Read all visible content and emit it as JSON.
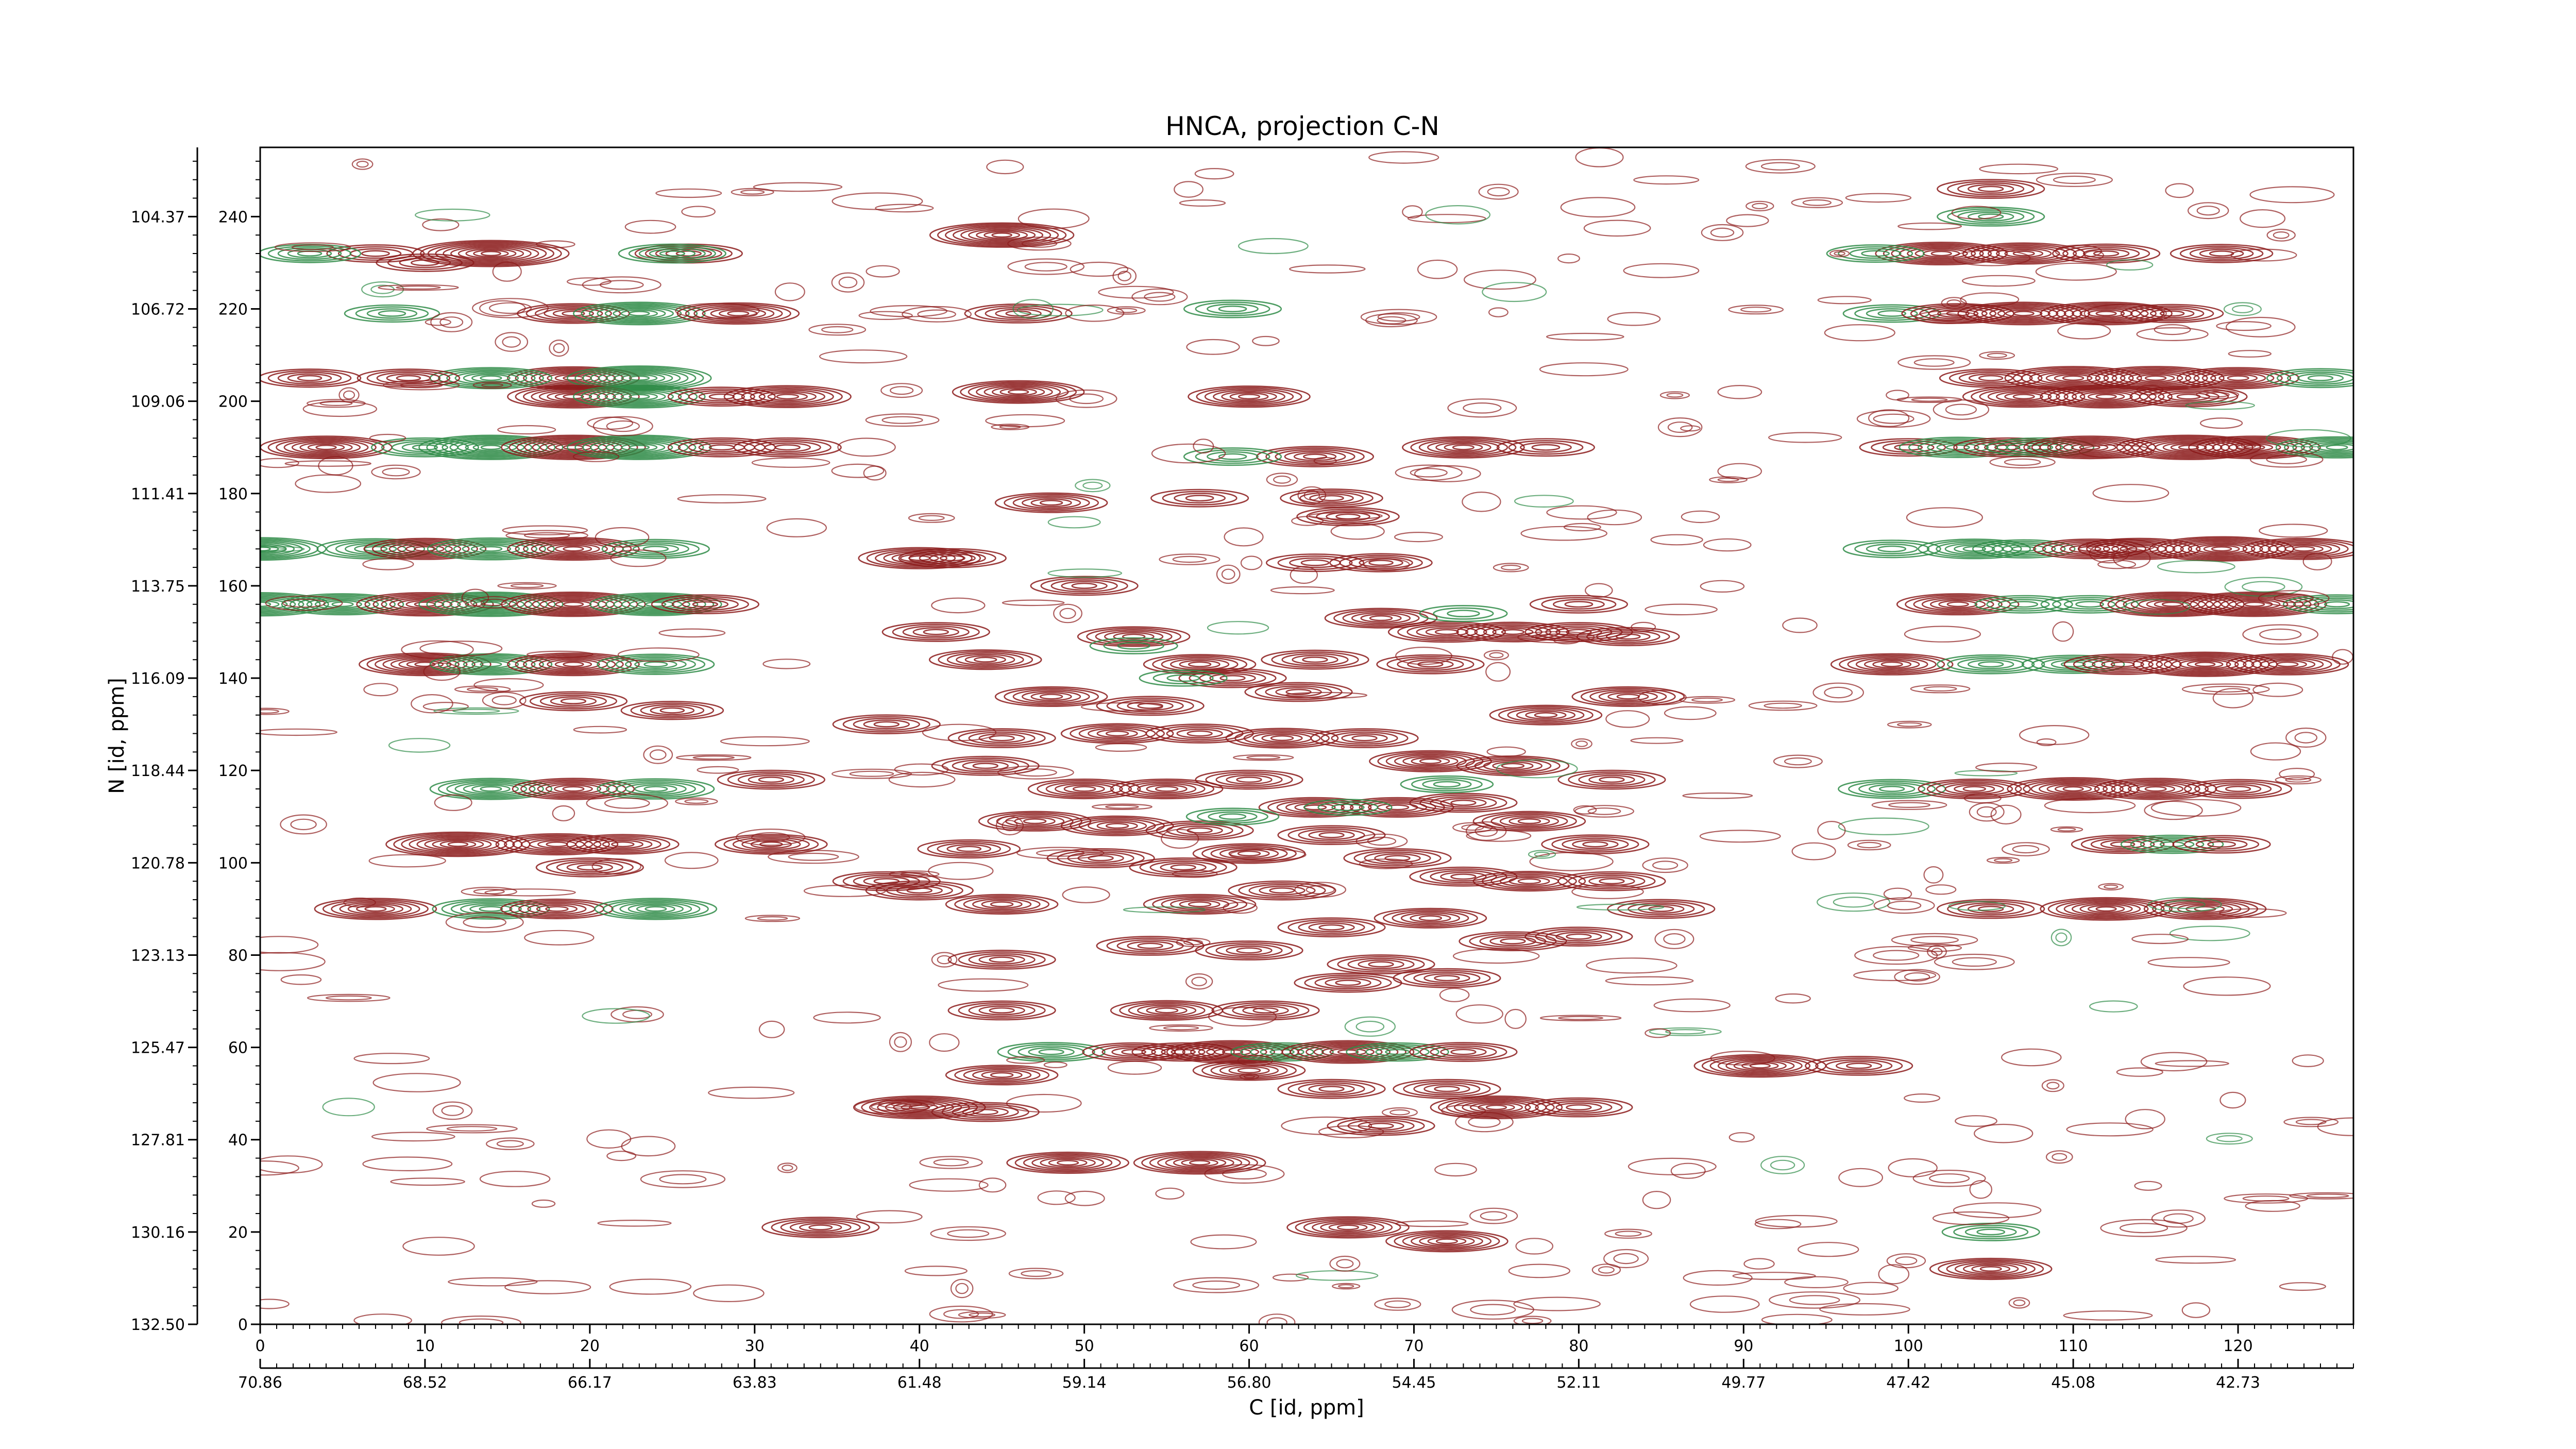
{
  "chart_data": {
    "type": "contour",
    "title": "HNCA, projection C-N",
    "xlabel": "C [id, ppm]",
    "ylabel": "N [id, ppm]",
    "x_index_range": [
      0,
      127
    ],
    "y_index_range": [
      0,
      255
    ],
    "x_index_ticks": [
      "0",
      "10",
      "20",
      "30",
      "40",
      "50",
      "60",
      "70",
      "80",
      "90",
      "100",
      "110",
      "120"
    ],
    "y_index_ticks": [
      "0",
      "20",
      "40",
      "60",
      "80",
      "100",
      "120",
      "140",
      "160",
      "180",
      "200",
      "220",
      "240"
    ],
    "x_ppm_ticks": [
      "70.86",
      "68.52",
      "66.17",
      "63.83",
      "61.48",
      "59.14",
      "56.80",
      "54.45",
      "52.11",
      "49.77",
      "47.42",
      "45.08",
      "42.73"
    ],
    "y_ppm_ticks": [
      "132.50",
      "130.16",
      "127.81",
      "125.47",
      "123.13",
      "120.78",
      "118.44",
      "116.09",
      "113.75",
      "111.41",
      "109.06",
      "106.72",
      "104.37"
    ],
    "colors": {
      "positive": "#8b1a1a",
      "negative": "#2e8b47"
    },
    "peaks": [
      [
        14,
        232,
        1,
        4.0
      ],
      [
        26,
        232,
        1,
        2.0
      ],
      [
        45,
        236,
        1,
        3.5
      ],
      [
        25,
        232,
        -1,
        2.0
      ],
      [
        7,
        232,
        1,
        1.6
      ],
      [
        10,
        230,
        1,
        1.6
      ],
      [
        3,
        232,
        -1,
        1.8
      ],
      [
        19,
        219,
        1,
        2.2
      ],
      [
        23,
        219,
        -1,
        3.0
      ],
      [
        29,
        219,
        1,
        2.6
      ],
      [
        46,
        219,
        1,
        2.0
      ],
      [
        8,
        219,
        -1,
        1.5
      ],
      [
        59,
        220,
        -1,
        1.6
      ],
      [
        19,
        205,
        1,
        3.0
      ],
      [
        14,
        205,
        -1,
        2.6
      ],
      [
        23,
        205,
        -1,
        3.5
      ],
      [
        9,
        205,
        1,
        1.8
      ],
      [
        3,
        205,
        1,
        1.8
      ],
      [
        19,
        201,
        1,
        3.0
      ],
      [
        23,
        201,
        -1,
        3.0
      ],
      [
        28,
        201,
        1,
        2.0
      ],
      [
        32,
        201,
        1,
        2.8
      ],
      [
        46,
        202,
        1,
        3.0
      ],
      [
        60,
        201,
        1,
        2.6
      ],
      [
        14,
        190,
        -1,
        3.5
      ],
      [
        19,
        190,
        1,
        3.5
      ],
      [
        23,
        190,
        -1,
        3.5
      ],
      [
        4,
        190,
        1,
        3.0
      ],
      [
        10,
        190,
        -1,
        2.0
      ],
      [
        28,
        190,
        1,
        2.0
      ],
      [
        32,
        190,
        1,
        2.0
      ],
      [
        73,
        190,
        1,
        2.6
      ],
      [
        78,
        190,
        1,
        1.6
      ],
      [
        64,
        188,
        1,
        2.4
      ],
      [
        59,
        188,
        -1,
        1.6
      ],
      [
        65,
        179,
        1,
        1.8
      ],
      [
        57,
        179,
        1,
        1.6
      ],
      [
        48,
        178,
        1,
        2.2
      ],
      [
        66,
        175,
        1,
        1.8
      ],
      [
        0,
        168,
        -1,
        3.0
      ],
      [
        7,
        168,
        -1,
        2.4
      ],
      [
        10,
        168,
        1,
        2.6
      ],
      [
        14,
        168,
        -1,
        2.8
      ],
      [
        19,
        168,
        1,
        3.0
      ],
      [
        24,
        168,
        -1,
        2.0
      ],
      [
        40,
        166,
        1,
        2.6
      ],
      [
        0,
        156,
        -1,
        3.2
      ],
      [
        5,
        156,
        -1,
        2.6
      ],
      [
        10,
        156,
        1,
        3.2
      ],
      [
        14,
        156,
        -1,
        3.5
      ],
      [
        19,
        156,
        1,
        3.5
      ],
      [
        24,
        156,
        -1,
        3.0
      ],
      [
        27,
        156,
        1,
        2.0
      ],
      [
        10,
        143,
        1,
        3.0
      ],
      [
        14,
        143,
        -1,
        2.6
      ],
      [
        19,
        143,
        1,
        3.0
      ],
      [
        24,
        143,
        -1,
        2.4
      ],
      [
        19,
        135,
        1,
        2.0
      ],
      [
        25,
        133,
        1,
        1.8
      ],
      [
        31,
        118,
        1,
        2.0
      ],
      [
        14,
        116,
        -1,
        2.6
      ],
      [
        19,
        116,
        1,
        2.6
      ],
      [
        24,
        116,
        -1,
        2.4
      ],
      [
        12,
        104,
        1,
        3.5
      ],
      [
        18,
        104,
        1,
        2.6
      ],
      [
        22,
        104,
        1,
        2.2
      ],
      [
        31,
        104,
        1,
        2.2
      ],
      [
        20,
        99,
        1,
        2.0
      ],
      [
        7,
        90,
        1,
        2.6
      ],
      [
        14,
        90,
        -1,
        2.4
      ],
      [
        18,
        90,
        1,
        2.2
      ],
      [
        24,
        90,
        -1,
        2.6
      ],
      [
        42,
        166,
        1,
        2.0
      ],
      [
        50,
        160,
        1,
        2.0
      ],
      [
        41,
        150,
        1,
        2.0
      ],
      [
        44,
        144,
        1,
        2.2
      ],
      [
        53,
        149,
        1,
        2.2
      ],
      [
        57,
        143,
        1,
        2.2
      ],
      [
        48,
        136,
        1,
        2.2
      ],
      [
        54,
        134,
        1,
        2.0
      ],
      [
        59,
        140,
        1,
        2.0
      ],
      [
        63,
        137,
        1,
        2.0
      ],
      [
        45,
        127,
        1,
        2.0
      ],
      [
        52,
        128,
        1,
        2.2
      ],
      [
        57,
        128,
        1,
        2.0
      ],
      [
        62,
        127,
        1,
        2.2
      ],
      [
        38,
        130,
        1,
        2.0
      ],
      [
        44,
        121,
        1,
        2.0
      ],
      [
        50,
        116,
        1,
        2.2
      ],
      [
        55,
        116,
        1,
        2.2
      ],
      [
        60,
        118,
        1,
        2.0
      ],
      [
        47,
        109,
        1,
        2.2
      ],
      [
        52,
        108,
        1,
        2.2
      ],
      [
        57,
        107,
        1,
        2.0
      ],
      [
        43,
        103,
        1,
        1.8
      ],
      [
        38,
        96,
        1,
        2.0
      ],
      [
        40,
        94,
        1,
        2.0
      ],
      [
        45,
        91,
        1,
        2.2
      ],
      [
        51,
        101,
        1,
        2.0
      ],
      [
        56,
        99,
        1,
        2.0
      ],
      [
        60,
        102,
        1,
        2.2
      ],
      [
        57,
        91,
        1,
        2.2
      ],
      [
        62,
        94,
        1,
        2.0
      ],
      [
        65,
        86,
        1,
        2.0
      ],
      [
        54,
        82,
        1,
        2.0
      ],
      [
        60,
        81,
        1,
        2.0
      ],
      [
        45,
        79,
        1,
        2.0
      ],
      [
        45,
        68,
        1,
        2.0
      ],
      [
        55,
        68,
        1,
        2.2
      ],
      [
        61,
        68,
        1,
        2.0
      ],
      [
        66,
        74,
        1,
        2.0
      ],
      [
        64,
        144,
        1,
        2.0
      ],
      [
        68,
        153,
        1,
        2.2
      ],
      [
        72,
        150,
        1,
        2.4
      ],
      [
        76,
        150,
        1,
        2.2
      ],
      [
        80,
        150,
        1,
        2.0
      ],
      [
        71,
        143,
        1,
        2.0
      ],
      [
        67,
        127,
        1,
        2.0
      ],
      [
        71,
        122,
        1,
        2.6
      ],
      [
        76,
        121,
        1,
        2.2
      ],
      [
        82,
        118,
        1,
        2.0
      ],
      [
        64,
        112,
        1,
        2.2
      ],
      [
        69,
        112,
        1,
        2.2
      ],
      [
        73,
        113,
        1,
        2.0
      ],
      [
        77,
        109,
        1,
        2.2
      ],
      [
        81,
        104,
        1,
        2.0
      ],
      [
        65,
        106,
        1,
        2.0
      ],
      [
        69,
        101,
        1,
        2.0
      ],
      [
        73,
        97,
        1,
        2.0
      ],
      [
        77,
        96,
        1,
        2.2
      ],
      [
        82,
        96,
        1,
        2.0
      ],
      [
        85,
        90,
        1,
        2.0
      ],
      [
        71,
        88,
        1,
        2.2
      ],
      [
        76,
        83,
        1,
        2.0
      ],
      [
        80,
        84,
        1,
        2.0
      ],
      [
        68,
        78,
        1,
        2.0
      ],
      [
        72,
        75,
        1,
        2.0
      ],
      [
        59,
        110,
        -1,
        1.4
      ],
      [
        66,
        112,
        -1,
        1.2
      ],
      [
        72,
        117,
        -1,
        1.4
      ],
      [
        83,
        136,
        1,
        2.2
      ],
      [
        78,
        132,
        1,
        2.2
      ],
      [
        80,
        156,
        1,
        1.6
      ],
      [
        64,
        165,
        1,
        1.6
      ],
      [
        68,
        165,
        1,
        1.8
      ],
      [
        73,
        154,
        -1,
        1.2
      ],
      [
        53,
        147,
        -1,
        1.2
      ],
      [
        56,
        140,
        -1,
        1.2
      ],
      [
        83,
        149,
        1,
        1.8
      ],
      [
        48,
        59,
        -1,
        2.0
      ],
      [
        53,
        59,
        1,
        1.8
      ],
      [
        56,
        59,
        1,
        1.8
      ],
      [
        59,
        59,
        1,
        3.0
      ],
      [
        62,
        59,
        -1,
        1.8
      ],
      [
        66,
        59,
        1,
        3.0
      ],
      [
        69,
        59,
        -1,
        1.8
      ],
      [
        73,
        59,
        1,
        2.0
      ],
      [
        60,
        55,
        1,
        2.2
      ],
      [
        65,
        51,
        1,
        2.0
      ],
      [
        72,
        51,
        1,
        2.0
      ],
      [
        75,
        47,
        1,
        3.0
      ],
      [
        80,
        47,
        1,
        2.0
      ],
      [
        68,
        43,
        1,
        2.0
      ],
      [
        57,
        35,
        1,
        3.0
      ],
      [
        49,
        35,
        1,
        2.6
      ],
      [
        40,
        47,
        1,
        3.0
      ],
      [
        44,
        46,
        1,
        2.0
      ],
      [
        91,
        56,
        1,
        3.0
      ],
      [
        97,
        56,
        1,
        2.0
      ],
      [
        45,
        54,
        1,
        2.2
      ],
      [
        34,
        21,
        1,
        2.4
      ],
      [
        66,
        21,
        1,
        2.6
      ],
      [
        72,
        18,
        1,
        2.6
      ],
      [
        102,
        232,
        1,
        3.0
      ],
      [
        107,
        232,
        1,
        2.6
      ],
      [
        112,
        232,
        1,
        2.0
      ],
      [
        98,
        232,
        -1,
        1.6
      ],
      [
        119,
        232,
        1,
        1.8
      ],
      [
        99,
        219,
        -1,
        1.6
      ],
      [
        103,
        219,
        1,
        2.2
      ],
      [
        107,
        219,
        1,
        3.0
      ],
      [
        112,
        219,
        1,
        3.0
      ],
      [
        116,
        219,
        1,
        1.8
      ],
      [
        105,
        205,
        1,
        1.8
      ],
      [
        110,
        205,
        1,
        3.2
      ],
      [
        115,
        205,
        1,
        3.2
      ],
      [
        120,
        205,
        1,
        2.6
      ],
      [
        125,
        205,
        -1,
        2.0
      ],
      [
        107,
        201,
        1,
        2.6
      ],
      [
        112,
        201,
        1,
        3.0
      ],
      [
        117,
        201,
        1,
        2.4
      ],
      [
        100,
        190,
        1,
        1.6
      ],
      [
        103,
        190,
        -1,
        2.4
      ],
      [
        106,
        190,
        1,
        2.0
      ],
      [
        108,
        190,
        -1,
        2.0
      ],
      [
        111,
        190,
        1,
        3.0
      ],
      [
        117,
        190,
        1,
        3.5
      ],
      [
        121,
        190,
        1,
        3.0
      ],
      [
        126,
        190,
        -1,
        2.6
      ],
      [
        99,
        168,
        -1,
        1.6
      ],
      [
        104,
        168,
        -1,
        2.2
      ],
      [
        107,
        168,
        -1,
        1.8
      ],
      [
        111,
        168,
        1,
        2.2
      ],
      [
        114,
        168,
        1,
        2.6
      ],
      [
        119,
        168,
        1,
        3.5
      ],
      [
        124,
        168,
        1,
        2.6
      ],
      [
        99,
        143,
        1,
        2.6
      ],
      [
        105,
        143,
        -1,
        2.0
      ],
      [
        110,
        143,
        -1,
        1.8
      ],
      [
        113,
        143,
        1,
        2.4
      ],
      [
        118,
        143,
        1,
        3.5
      ],
      [
        123,
        143,
        1,
        2.6
      ],
      [
        103,
        156,
        1,
        2.6
      ],
      [
        107,
        156,
        -1,
        1.6
      ],
      [
        111,
        156,
        -1,
        1.6
      ],
      [
        116,
        156,
        1,
        3.5
      ],
      [
        121,
        156,
        1,
        3.5
      ],
      [
        126,
        156,
        -1,
        2.0
      ],
      [
        99,
        116,
        -1,
        2.0
      ],
      [
        104,
        116,
        1,
        2.2
      ],
      [
        110,
        116,
        1,
        3.0
      ],
      [
        115,
        116,
        1,
        2.6
      ],
      [
        120,
        116,
        1,
        2.0
      ],
      [
        113,
        104,
        1,
        1.8
      ],
      [
        116,
        104,
        -1,
        1.8
      ],
      [
        119,
        104,
        1,
        1.6
      ],
      [
        105,
        90,
        1,
        2.0
      ],
      [
        112,
        90,
        1,
        3.0
      ],
      [
        118,
        90,
        1,
        2.6
      ],
      [
        105,
        246,
        1,
        2.0
      ],
      [
        105,
        240,
        -1,
        2.0
      ],
      [
        105,
        12,
        1,
        2.6
      ],
      [
        105,
        20,
        -1,
        1.6
      ]
    ]
  }
}
